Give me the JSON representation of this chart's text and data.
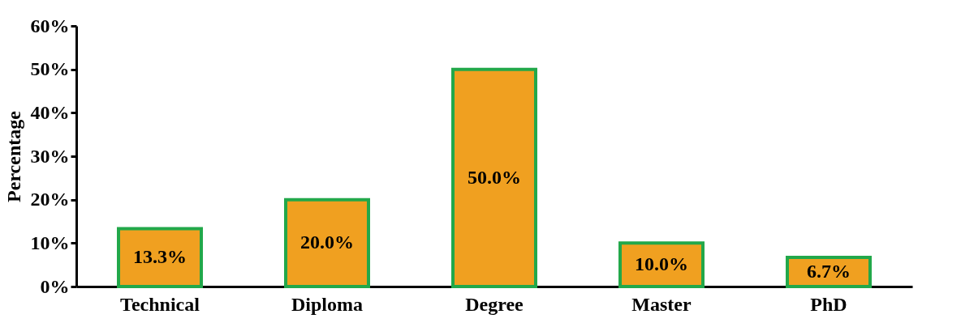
{
  "chart_data": {
    "type": "bar",
    "ylabel": "Percentage",
    "categories": [
      "Technical",
      "Diploma",
      "Degree",
      "Master",
      "PhD"
    ],
    "values": [
      13.3,
      20.0,
      50.0,
      10.0,
      6.7
    ],
    "value_labels": [
      "13.3%",
      "20.0%",
      "50.0%",
      "10.0%",
      "6.7%"
    ],
    "color": "#f0a020",
    "ylim": [
      0,
      60
    ],
    "yticks": [
      {
        "value": 0,
        "label": "0%"
      },
      {
        "value": 10,
        "label": "10%"
      },
      {
        "value": 20,
        "label": "20%"
      },
      {
        "value": 30,
        "label": "30%"
      },
      {
        "value": 40,
        "label": "40%"
      },
      {
        "value": 50,
        "label": "50%"
      },
      {
        "value": 60,
        "label": "60%"
      }
    ],
    "grid": false
  }
}
